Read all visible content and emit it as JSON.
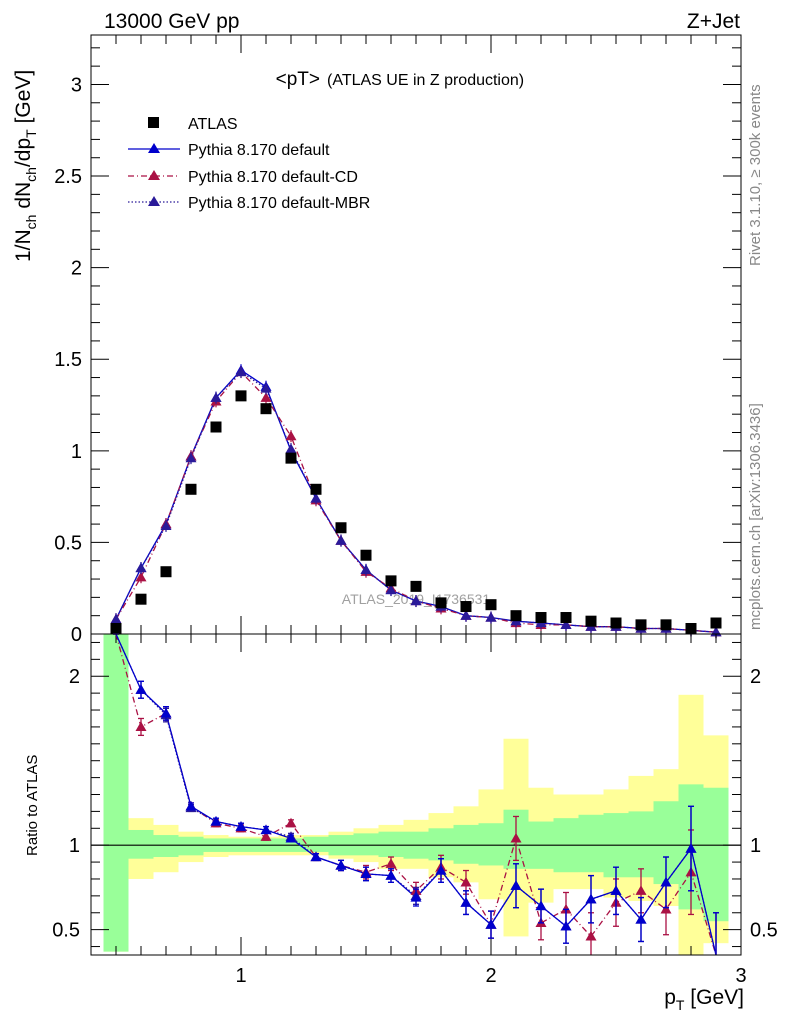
{
  "header": {
    "energy": "13000 GeV pp",
    "process": "Z+Jet"
  },
  "sidebar": {
    "rivet": "Rivet 3.1.10, ≥ 300k events",
    "mcplots": "mcplots.cern.ch [arXiv:1306.3436]"
  },
  "watermark": "ATLAS_2019_I1736531",
  "colors": {
    "atlas": "#000000",
    "default": "#0000cc",
    "cd": "#aa1144",
    "mbr": "#2a1a99",
    "band_green": "#99ff99",
    "band_yellow": "#ffff99"
  },
  "chart_data": [
    {
      "type": "scatter",
      "title": "<pT>",
      "subtitle": "(ATLAS UE in Z production)",
      "ylabel": "1/N",
      "ylabel_parts": {
        "a": "1/N",
        "s1": "ch",
        "b": " dN",
        "s2": "ch",
        "c": "/dp",
        "s3": "T",
        "d": " [GeV]"
      },
      "xlim": [
        0.4,
        3.0
      ],
      "ylim": [
        0,
        3.27
      ],
      "yticks": [
        "0",
        "0.5",
        "1",
        "1.5",
        "2",
        "2.5",
        "3"
      ],
      "legend_position": "top-left",
      "x": [
        0.5,
        0.6,
        0.7,
        0.8,
        0.9,
        1.0,
        1.1,
        1.2,
        1.3,
        1.4,
        1.5,
        1.6,
        1.7,
        1.8,
        1.9,
        2.0,
        2.1,
        2.2,
        2.3,
        2.4,
        2.5,
        2.6,
        2.7,
        2.8,
        2.9
      ],
      "series": [
        {
          "name": "ATLAS",
          "marker": "square",
          "values": [
            0.03,
            0.19,
            0.34,
            0.79,
            1.13,
            1.3,
            1.23,
            0.96,
            0.79,
            0.58,
            0.43,
            0.29,
            0.26,
            0.17,
            0.15,
            0.16,
            0.1,
            0.09,
            0.09,
            0.07,
            0.06,
            0.05,
            0.05,
            0.03,
            0.06
          ]
        },
        {
          "name": "Pythia 8.170 default",
          "marker": "triangle",
          "line": "solid",
          "values": [
            0.08,
            0.36,
            0.6,
            0.97,
            1.29,
            1.44,
            1.35,
            1.0,
            0.74,
            0.51,
            0.35,
            0.24,
            0.18,
            0.15,
            0.1,
            0.09,
            0.07,
            0.06,
            0.05,
            0.04,
            0.04,
            0.03,
            0.03,
            0.02,
            0.01
          ]
        },
        {
          "name": "Pythia 8.170 default-CD",
          "marker": "triangle",
          "line": "dashdot",
          "values": [
            0.08,
            0.31,
            0.6,
            0.97,
            1.27,
            1.43,
            1.29,
            1.08,
            0.73,
            0.51,
            0.34,
            0.25,
            0.18,
            0.14,
            0.1,
            0.09,
            0.06,
            0.05,
            0.05,
            0.04,
            0.04,
            0.03,
            0.03,
            0.02,
            0.01
          ]
        },
        {
          "name": "Pythia 8.170 default-MBR",
          "marker": "triangle",
          "line": "dotted",
          "values": [
            0.08,
            0.36,
            0.59,
            0.96,
            1.29,
            1.43,
            1.34,
            1.01,
            0.74,
            0.51,
            0.35,
            0.24,
            0.18,
            0.15,
            0.1,
            0.09,
            0.07,
            0.06,
            0.05,
            0.04,
            0.04,
            0.03,
            0.03,
            0.02,
            0.01
          ]
        }
      ]
    },
    {
      "type": "line",
      "xlabel": "p",
      "xlabel_parts": {
        "a": "p",
        "s": "T",
        "b": " [GeV]"
      },
      "ylabel": "Ratio to ATLAS",
      "xlim": [
        0.4,
        3.0
      ],
      "ylim": [
        0.35,
        2.25
      ],
      "xticks": [
        "1",
        "2",
        "3"
      ],
      "yticks": [
        "0.5",
        "1",
        "2"
      ],
      "x": [
        0.5,
        0.6,
        0.7,
        0.8,
        0.9,
        1.0,
        1.1,
        1.2,
        1.3,
        1.4,
        1.5,
        1.6,
        1.7,
        1.8,
        1.9,
        2.0,
        2.1,
        2.2,
        2.3,
        2.4,
        2.5,
        2.6,
        2.7,
        2.8,
        2.9
      ],
      "uncertainty_bands": {
        "green_low": [
          0.37,
          0.92,
          0.93,
          0.94,
          0.96,
          0.96,
          0.96,
          0.96,
          0.96,
          0.94,
          0.94,
          0.93,
          0.92,
          0.91,
          0.89,
          0.88,
          0.86,
          0.86,
          0.84,
          0.84,
          0.81,
          0.81,
          0.77,
          0.62,
          0.55
        ],
        "green_high": [
          2.25,
          1.09,
          1.06,
          1.05,
          1.04,
          1.04,
          1.04,
          1.04,
          1.05,
          1.06,
          1.07,
          1.08,
          1.08,
          1.1,
          1.12,
          1.13,
          1.21,
          1.14,
          1.16,
          1.18,
          1.19,
          1.2,
          1.26,
          1.36,
          1.34
        ],
        "yellow_low": [
          0.37,
          0.8,
          0.84,
          0.9,
          0.93,
          0.94,
          0.94,
          0.94,
          0.94,
          0.92,
          0.9,
          0.86,
          0.86,
          0.81,
          0.78,
          0.68,
          0.46,
          0.66,
          0.74,
          0.74,
          0.69,
          0.67,
          0.64,
          0.35,
          0.42
        ],
        "yellow_high": [
          2.25,
          1.16,
          1.12,
          1.08,
          1.06,
          1.05,
          1.05,
          1.06,
          1.06,
          1.08,
          1.1,
          1.12,
          1.15,
          1.19,
          1.23,
          1.33,
          1.63,
          1.34,
          1.3,
          1.3,
          1.33,
          1.41,
          1.45,
          1.89,
          1.65
        ]
      },
      "series": [
        {
          "name": "Pythia 8.170 default",
          "line": "solid",
          "values": [
            2.6,
            1.92,
            1.78,
            1.23,
            1.14,
            1.11,
            1.09,
            1.04,
            0.93,
            0.88,
            0.83,
            0.82,
            0.69,
            0.85,
            0.66,
            0.53,
            0.76,
            0.64,
            0.52,
            0.68,
            0.73,
            0.56,
            0.78,
            0.98,
            0.3
          ],
          "errors": [
            0.1,
            0.05,
            0.04,
            0.02,
            0.02,
            0.02,
            0.02,
            0.02,
            0.02,
            0.03,
            0.04,
            0.04,
            0.05,
            0.07,
            0.07,
            0.08,
            0.13,
            0.1,
            0.1,
            0.14,
            0.14,
            0.13,
            0.15,
            0.25,
            0.3
          ]
        },
        {
          "name": "Pythia 8.170 default-CD",
          "line": "dashdot",
          "values": [
            2.6,
            1.7,
            1.78,
            1.23,
            1.13,
            1.1,
            1.05,
            1.13,
            0.93,
            0.88,
            0.84,
            0.89,
            0.73,
            0.87,
            0.78,
            0.53,
            1.04,
            0.54,
            0.62,
            0.46,
            0.66,
            0.73,
            0.62,
            0.84,
            0.3
          ],
          "errors": [
            0.1,
            0.05,
            0.04,
            0.02,
            0.02,
            0.02,
            0.02,
            0.02,
            0.02,
            0.03,
            0.04,
            0.04,
            0.05,
            0.07,
            0.07,
            0.08,
            0.13,
            0.1,
            0.1,
            0.14,
            0.14,
            0.13,
            0.15,
            0.25,
            0.3
          ]
        },
        {
          "name": "Pythia 8.170 default-MBR",
          "line": "dotted",
          "values": [
            2.6,
            1.92,
            1.77,
            1.22,
            1.14,
            1.11,
            1.09,
            1.05,
            0.93,
            0.88,
            0.83,
            0.82,
            0.7,
            0.85,
            0.66,
            0.53,
            0.76,
            0.64,
            0.52,
            0.68,
            0.73,
            0.56,
            0.78,
            0.98,
            0.3
          ],
          "errors": [
            0.1,
            0.05,
            0.04,
            0.02,
            0.02,
            0.02,
            0.02,
            0.02,
            0.02,
            0.03,
            0.04,
            0.04,
            0.05,
            0.07,
            0.07,
            0.08,
            0.13,
            0.1,
            0.1,
            0.14,
            0.14,
            0.13,
            0.15,
            0.25,
            0.3
          ]
        }
      ]
    }
  ]
}
